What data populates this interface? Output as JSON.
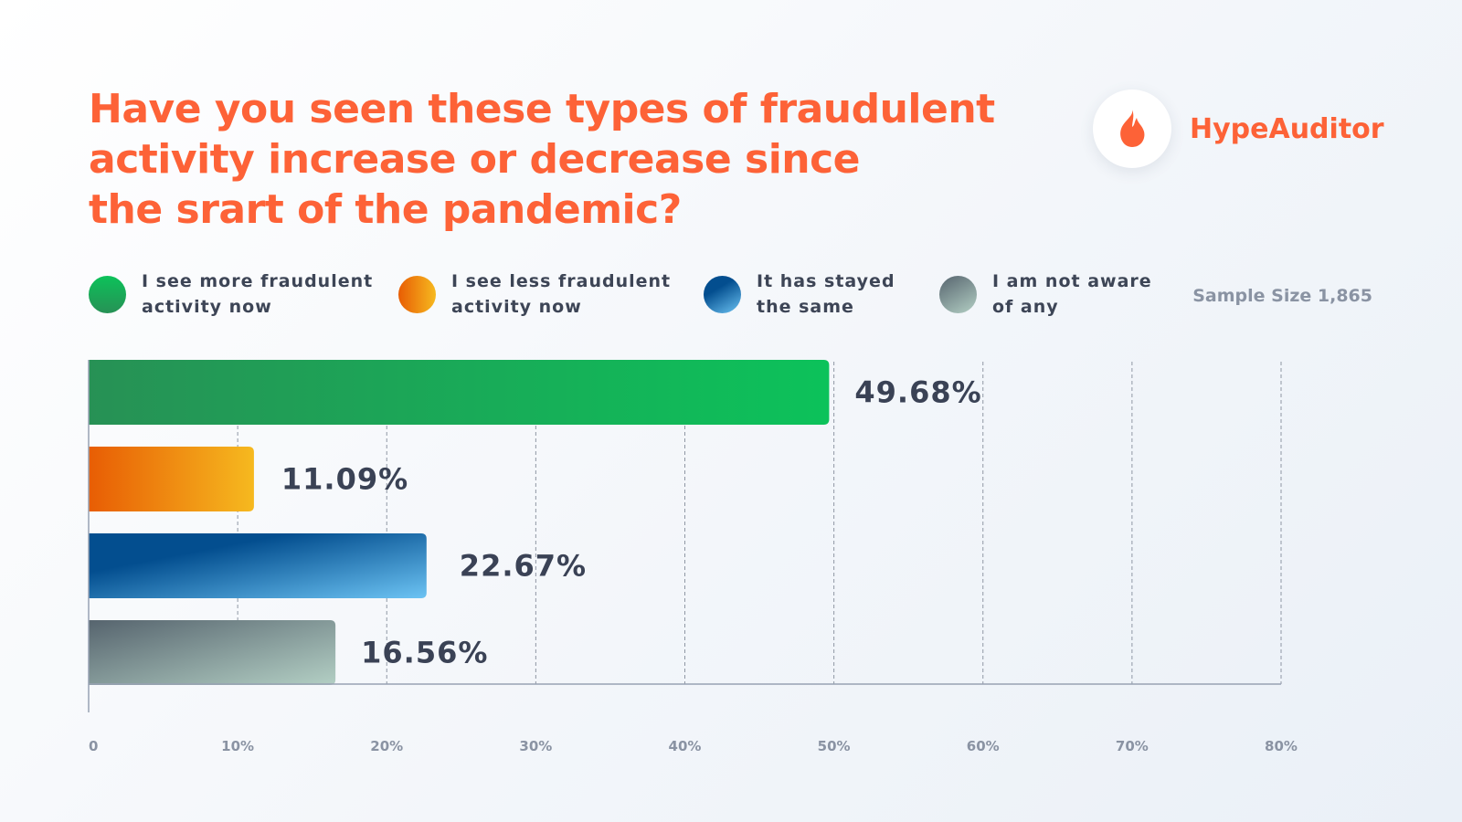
{
  "title_lines": [
    "Have you seen these types of fraudulent",
    "activity increase or decrease since",
    "the srart of the pandemic?"
  ],
  "brand": {
    "name": "HypeAuditor",
    "icon": "flame-icon",
    "color": "#fd6237"
  },
  "sample_size": "Sample Size 1,865",
  "legend": [
    {
      "line1": "I see more fraudulent",
      "line2": "activity now",
      "color_a": "#0cc25a",
      "color_b": "#279155"
    },
    {
      "line1": "I see less fraudulent",
      "line2": "activity now",
      "color_a": "#e85d04",
      "color_b": "#f6b91f"
    },
    {
      "line1": "It has stayed",
      "line2": "the same",
      "color_a": "#034e8f",
      "color_b": "#6cc3f3"
    },
    {
      "line1": "I am not aware",
      "line2": "of any",
      "color_a": "#56646e",
      "color_b": "#b3cfc4"
    }
  ],
  "chart_data": {
    "type": "bar",
    "orientation": "horizontal",
    "categories": [
      "I see more fraudulent activity now",
      "I see less fraudulent activity now",
      "It has stayed the same",
      "I am not aware of any"
    ],
    "values": [
      49.68,
      11.09,
      22.67,
      16.56
    ],
    "value_labels": [
      "49.68%",
      "11.09%",
      "22.67%",
      "16.56%"
    ],
    "xlim": [
      0,
      80
    ],
    "x_ticks": [
      0,
      10,
      20,
      30,
      40,
      50,
      60,
      70,
      80
    ],
    "x_tick_labels": [
      "0",
      "10%",
      "20%",
      "30%",
      "40%",
      "50%",
      "60%",
      "70%",
      "80%"
    ],
    "grid": true,
    "legend_position": "top"
  }
}
